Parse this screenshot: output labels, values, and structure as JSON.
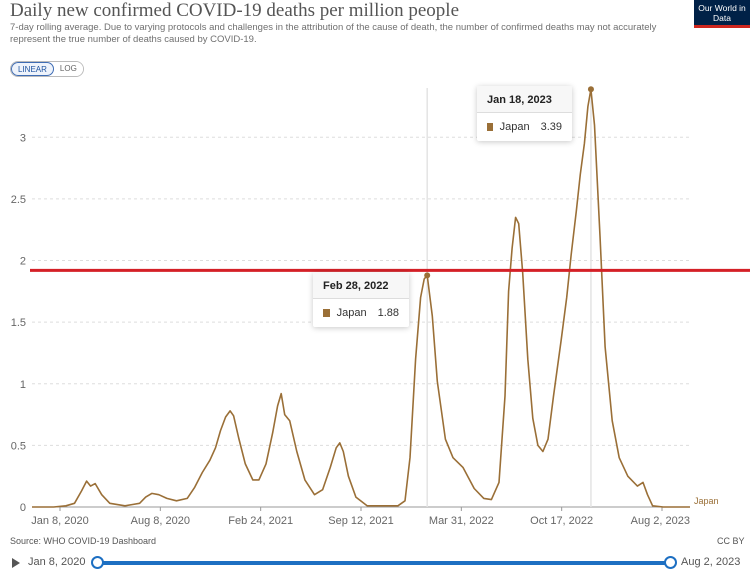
{
  "header": {
    "title": "Daily new confirmed COVID-19 deaths per million people",
    "subtitle": "7-day rolling average. Due to varying protocols and challenges in the attribution of the cause of death, the number of confirmed deaths may not accurately represent the true number of deaths caused by COVID-19.",
    "logo": "Our World in Data"
  },
  "controls": {
    "linear_label": "LINEAR",
    "log_label": "LOG",
    "active": "LINEAR"
  },
  "tooltips": [
    {
      "date": "Feb 28, 2022",
      "entity": "Japan",
      "value": "1.88"
    },
    {
      "date": "Jan 18, 2023",
      "entity": "Japan",
      "value": "3.39"
    }
  ],
  "footer": {
    "source": "Source: WHO COVID-19 Dashboard",
    "license": "CC BY"
  },
  "timeline": {
    "start": "Jan 8, 2020",
    "end": "Aug 2, 2023"
  },
  "colors": {
    "series": "#9a6f37",
    "threshold": "#d42027",
    "accent": "#1d6fc2"
  },
  "chart_data": {
    "type": "line",
    "x_ticks": [
      "Jan 8, 2020",
      "Aug 8, 2020",
      "Feb 24, 2021",
      "Sep 12, 2021",
      "Mar 31, 2022",
      "Oct 17, 2022",
      "Aug 2, 2023"
    ],
    "y_ticks": [
      "0",
      "0.5",
      "1",
      "1.5",
      "2",
      "2.5",
      "3"
    ],
    "ylim": [
      0,
      3.4
    ],
    "xlim": [
      "2020-01-08",
      "2023-08-02"
    ],
    "threshold_line": 1.92,
    "series": [
      {
        "name": "Japan",
        "points": [
          [
            "2020-01-08",
            0
          ],
          [
            "2020-02-20",
            0
          ],
          [
            "2020-03-15",
            0.01
          ],
          [
            "2020-04-01",
            0.03
          ],
          [
            "2020-04-15",
            0.13
          ],
          [
            "2020-04-25",
            0.21
          ],
          [
            "2020-05-03",
            0.17
          ],
          [
            "2020-05-12",
            0.19
          ],
          [
            "2020-05-25",
            0.1
          ],
          [
            "2020-06-10",
            0.03
          ],
          [
            "2020-07-10",
            0.01
          ],
          [
            "2020-07-25",
            0.02
          ],
          [
            "2020-08-08",
            0.03
          ],
          [
            "2020-08-20",
            0.08
          ],
          [
            "2020-09-01",
            0.11
          ],
          [
            "2020-09-15",
            0.1
          ],
          [
            "2020-10-01",
            0.07
          ],
          [
            "2020-10-20",
            0.05
          ],
          [
            "2020-11-10",
            0.07
          ],
          [
            "2020-11-25",
            0.16
          ],
          [
            "2020-12-10",
            0.28
          ],
          [
            "2020-12-25",
            0.38
          ],
          [
            "2021-01-05",
            0.48
          ],
          [
            "2021-01-15",
            0.62
          ],
          [
            "2021-01-25",
            0.73
          ],
          [
            "2021-02-03",
            0.78
          ],
          [
            "2021-02-10",
            0.74
          ],
          [
            "2021-02-20",
            0.56
          ],
          [
            "2021-03-05",
            0.35
          ],
          [
            "2021-03-20",
            0.22
          ],
          [
            "2021-04-01",
            0.22
          ],
          [
            "2021-04-15",
            0.35
          ],
          [
            "2021-04-28",
            0.6
          ],
          [
            "2021-05-08",
            0.82
          ],
          [
            "2021-05-15",
            0.92
          ],
          [
            "2021-05-22",
            0.75
          ],
          [
            "2021-06-01",
            0.7
          ],
          [
            "2021-06-15",
            0.45
          ],
          [
            "2021-07-01",
            0.22
          ],
          [
            "2021-07-20",
            0.1
          ],
          [
            "2021-08-05",
            0.14
          ],
          [
            "2021-08-20",
            0.32
          ],
          [
            "2021-09-01",
            0.48
          ],
          [
            "2021-09-08",
            0.52
          ],
          [
            "2021-09-15",
            0.45
          ],
          [
            "2021-09-25",
            0.25
          ],
          [
            "2021-10-10",
            0.08
          ],
          [
            "2021-11-01",
            0.01
          ],
          [
            "2021-12-01",
            0.01
          ],
          [
            "2022-01-01",
            0.01
          ],
          [
            "2022-01-15",
            0.05
          ],
          [
            "2022-01-25",
            0.4
          ],
          [
            "2022-02-05",
            1.2
          ],
          [
            "2022-02-15",
            1.7
          ],
          [
            "2022-02-22",
            1.85
          ],
          [
            "2022-02-28",
            1.88
          ],
          [
            "2022-03-10",
            1.55
          ],
          [
            "2022-03-20",
            1.02
          ],
          [
            "2022-04-05",
            0.55
          ],
          [
            "2022-04-20",
            0.4
          ],
          [
            "2022-05-10",
            0.32
          ],
          [
            "2022-06-01",
            0.15
          ],
          [
            "2022-06-20",
            0.07
          ],
          [
            "2022-07-05",
            0.06
          ],
          [
            "2022-07-20",
            0.2
          ],
          [
            "2022-08-01",
            0.9
          ],
          [
            "2022-08-08",
            1.75
          ],
          [
            "2022-08-15",
            2.1
          ],
          [
            "2022-08-22",
            2.35
          ],
          [
            "2022-08-28",
            2.3
          ],
          [
            "2022-09-05",
            1.9
          ],
          [
            "2022-09-15",
            1.2
          ],
          [
            "2022-09-25",
            0.72
          ],
          [
            "2022-10-05",
            0.5
          ],
          [
            "2022-10-15",
            0.45
          ],
          [
            "2022-10-25",
            0.55
          ],
          [
            "2022-11-05",
            0.9
          ],
          [
            "2022-11-20",
            1.35
          ],
          [
            "2022-12-01",
            1.7
          ],
          [
            "2022-12-10",
            2.05
          ],
          [
            "2022-12-20",
            2.4
          ],
          [
            "2022-12-28",
            2.7
          ],
          [
            "2023-01-05",
            2.95
          ],
          [
            "2023-01-12",
            3.25
          ],
          [
            "2023-01-18",
            3.39
          ],
          [
            "2023-01-25",
            3.1
          ],
          [
            "2023-02-05",
            2.2
          ],
          [
            "2023-02-15",
            1.3
          ],
          [
            "2023-03-01",
            0.7
          ],
          [
            "2023-03-15",
            0.4
          ],
          [
            "2023-04-01",
            0.25
          ],
          [
            "2023-04-20",
            0.17
          ],
          [
            "2023-05-01",
            0.2
          ],
          [
            "2023-05-10",
            0.1
          ],
          [
            "2023-05-20",
            0.01
          ],
          [
            "2023-06-10",
            0
          ],
          [
            "2023-08-02",
            0
          ]
        ]
      }
    ]
  }
}
